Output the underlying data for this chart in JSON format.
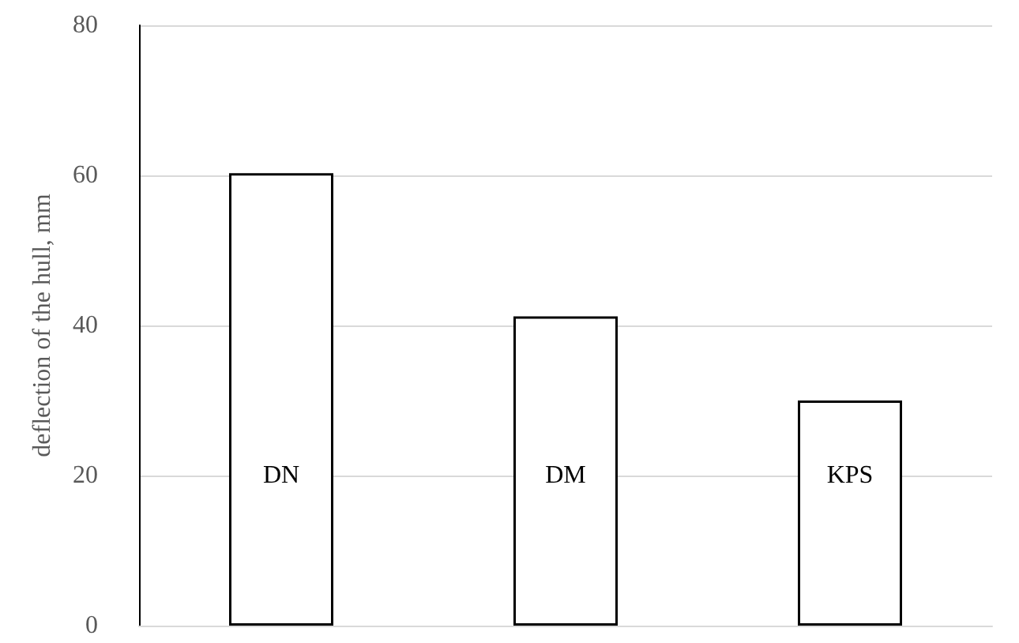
{
  "chart_data": {
    "type": "bar",
    "ylabel": "deflection of the hull, mm",
    "categories": [
      "DN",
      "DM",
      "KPS"
    ],
    "series": [
      {
        "color": "#ffffff",
        "values": [
          60.3,
          41.2,
          30
        ]
      }
    ],
    "ylim": [
      0,
      80
    ],
    "yticks": [
      0,
      20,
      40,
      60,
      80
    ],
    "grid": "y"
  }
}
